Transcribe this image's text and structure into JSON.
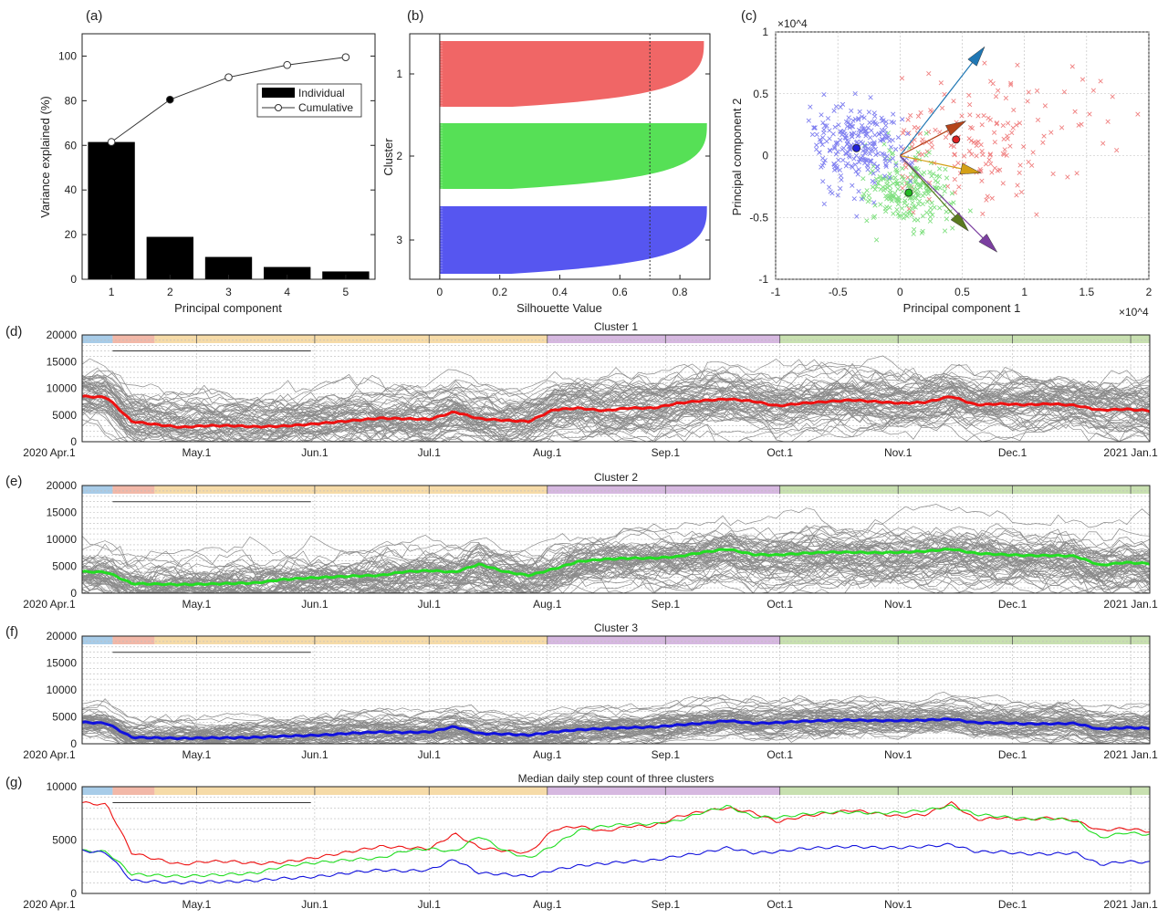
{
  "chart_data": [
    {
      "panel": "(a)",
      "type": "bar",
      "xlabel": "Principal component",
      "ylabel": "Variance explained (%)",
      "categories": [
        "1",
        "2",
        "3",
        "4",
        "5"
      ],
      "ylim": [
        0,
        110
      ],
      "yticks": [
        "0",
        "20",
        "40",
        "60",
        "80",
        "100"
      ],
      "series": [
        {
          "name": "Individual",
          "type": "bar",
          "values": [
            61.5,
            19,
            10,
            5.5,
            3.5
          ]
        },
        {
          "name": "Cumulative",
          "type": "line",
          "values": [
            61.5,
            80.5,
            90.5,
            96,
            99.5
          ]
        }
      ],
      "legend": "top-right"
    },
    {
      "panel": "(b)",
      "type": "bar",
      "xlabel": "Silhouette Value",
      "ylabel": "Cluster",
      "xlim": [
        -0.1,
        0.9
      ],
      "xticks": [
        "0",
        "0.2",
        "0.4",
        "0.6",
        "0.8"
      ],
      "clusters": [
        "1",
        "2",
        "3"
      ],
      "max_values": [
        0.88,
        0.89,
        0.89
      ],
      "min_values": [
        0.0,
        0.0,
        0.0
      ],
      "mean_line": 0.7,
      "colors": [
        "#ee5555",
        "#44dd44",
        "#4444ee"
      ]
    },
    {
      "panel": "(c)",
      "type": "scatter",
      "xlabel": "Principal component 1",
      "ylabel": "Principal component 2",
      "x_multiplier": "×10^4",
      "y_multiplier": "×10^4",
      "xlim": [
        -1,
        2
      ],
      "ylim": [
        -1,
        1
      ],
      "xticks": [
        "-1",
        "-0.5",
        "0",
        "0.5",
        "1",
        "1.5",
        "2"
      ],
      "yticks": [
        "-1",
        "-0.5",
        "0",
        "0.5",
        "1"
      ],
      "centroids": [
        {
          "cluster": "1",
          "x": 0.45,
          "y": 0.13,
          "color": "#dd2222"
        },
        {
          "cluster": "2",
          "x": 0.07,
          "y": -0.3,
          "color": "#22bb22"
        },
        {
          "cluster": "3",
          "x": -0.35,
          "y": 0.06,
          "color": "#2222dd"
        }
      ],
      "vectors": [
        {
          "x": 0.68,
          "y": 0.88,
          "color": "#1f77b4"
        },
        {
          "x": 0.53,
          "y": 0.28,
          "color": "#b5441a"
        },
        {
          "x": 0.65,
          "y": -0.14,
          "color": "#d4a017"
        },
        {
          "x": 0.55,
          "y": -0.61,
          "color": "#5a7a20"
        },
        {
          "x": 0.78,
          "y": -0.78,
          "color": "#7b3fa0"
        }
      ],
      "colors": {
        "cluster1": "#f08080",
        "cluster2": "#80e080",
        "cluster3": "#8080f0"
      }
    },
    {
      "panel": "(d)",
      "type": "line",
      "title": "Cluster 1",
      "ylim": [
        0,
        20000
      ],
      "yticks": [
        "0",
        "5000",
        "10000",
        "15000",
        "20000"
      ],
      "xticks": [
        "2020 Apr.1",
        "May.1",
        "Jun.1",
        "Jul.1",
        "Aug.1",
        "Sep.1",
        "Oct.1",
        "Nov.1",
        "Dec.1",
        "2021 Jan.1"
      ],
      "median_color": "#ee1111",
      "median": [
        8500,
        8300,
        3800,
        3200,
        2700,
        3000,
        3000,
        2800,
        2900,
        3200,
        3600,
        4000,
        4400,
        4300,
        4200,
        5600,
        4300,
        4000,
        3800,
        6000,
        6300,
        5800,
        6300,
        6300,
        7200,
        7700,
        8000,
        7600,
        6700,
        7200,
        7500,
        7800,
        7500,
        7200,
        7400,
        8500,
        6900,
        7100,
        6900,
        7100,
        6800,
        5900,
        6100,
        5800
      ],
      "noise_level": 2500
    },
    {
      "panel": "(e)",
      "type": "line",
      "title": "Cluster 2",
      "ylim": [
        0,
        20000
      ],
      "yticks": [
        "0",
        "5000",
        "10000",
        "15000",
        "20000"
      ],
      "xticks": [
        "2020 Apr.1",
        "May.1",
        "Jun.1",
        "Jul.1",
        "Aug.1",
        "Sep.1",
        "Oct.1",
        "Nov.1",
        "Dec.1",
        "2021 Jan.1"
      ],
      "median_color": "#22dd22",
      "median": [
        4000,
        3900,
        1800,
        1700,
        1600,
        1700,
        1800,
        1900,
        2500,
        2800,
        3000,
        3200,
        3300,
        4000,
        4200,
        3900,
        5400,
        4000,
        3300,
        4500,
        5900,
        6300,
        6500,
        6500,
        6800,
        7600,
        8200,
        7200,
        7100,
        7400,
        7600,
        7600,
        7500,
        7600,
        7800,
        8200,
        7400,
        7200,
        7000,
        7000,
        6900,
        5200,
        5700,
        5500
      ],
      "noise_level": 2600
    },
    {
      "panel": "(f)",
      "type": "line",
      "title": "Cluster 3",
      "ylim": [
        0,
        20000
      ],
      "yticks": [
        "0",
        "5000",
        "10000",
        "15000",
        "20000"
      ],
      "xticks": [
        "2020 Apr.1",
        "May.1",
        "Jun.1",
        "Jul.1",
        "Aug.1",
        "Sep.1",
        "Oct.1",
        "Nov.1",
        "Dec.1",
        "2021 Jan.1"
      ],
      "median_color": "#1111dd",
      "median": [
        4000,
        3800,
        1200,
        1100,
        1000,
        1100,
        1100,
        1200,
        1400,
        1500,
        1700,
        2000,
        2200,
        2100,
        2200,
        3200,
        1900,
        1800,
        1600,
        2200,
        2600,
        2800,
        3000,
        3100,
        3500,
        3800,
        4300,
        3800,
        3900,
        4200,
        4300,
        4400,
        4300,
        4300,
        4400,
        4600,
        3900,
        3900,
        3700,
        3700,
        3800,
        2700,
        3000,
        2900
      ],
      "noise_level": 1500
    },
    {
      "panel": "(g)",
      "type": "line",
      "title": "Median daily step count of three clusters",
      "ylim": [
        0,
        10000
      ],
      "yticks": [
        "0",
        "5000",
        "10000"
      ],
      "xticks": [
        "2020 Apr.1",
        "May.1",
        "Jun.1",
        "Jul.1",
        "Aug.1",
        "Sep.1",
        "Oct.1",
        "Nov.1",
        "Dec.1",
        "2021 Jan.1"
      ],
      "series_ref": [
        "(d)",
        "(e)",
        "(f)"
      ]
    }
  ],
  "periods": [
    "#a8cce8",
    "#f2b8a8",
    "#f6dba8",
    "#d6b8e0",
    "#c8e0b0"
  ]
}
